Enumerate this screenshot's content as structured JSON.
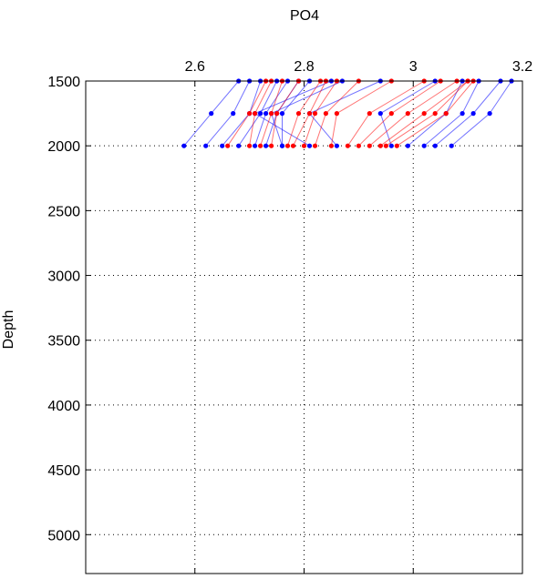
{
  "chart_data": {
    "type": "line",
    "title": "PO4",
    "xlabel": "",
    "ylabel": "Depth",
    "x_axis_position": "top",
    "y_axis_reversed": true,
    "xlim": [
      2.4,
      3.2
    ],
    "ylim": [
      1500,
      5300
    ],
    "xticks": [
      2.6,
      2.8,
      3,
      3.2
    ],
    "xtick_labels": [
      "2.6",
      "2.8",
      "3",
      "3.2"
    ],
    "yticks": [
      1500,
      2000,
      2500,
      3000,
      3500,
      4000,
      4500,
      5000
    ],
    "ytick_labels": [
      "1500",
      "2000",
      "2500",
      "3000",
      "3500",
      "4000",
      "4500",
      "5000"
    ],
    "grid": true,
    "series": [
      {
        "color": "#0000ff",
        "profiles": [
          [
            [
              2.68,
              1500
            ],
            [
              2.63,
              1750
            ],
            [
              2.58,
              2000
            ]
          ],
          [
            [
              2.7,
              1500
            ],
            [
              2.67,
              1750
            ],
            [
              2.62,
              2000
            ]
          ],
          [
            [
              2.72,
              1500
            ],
            [
              2.7,
              1750
            ],
            [
              2.65,
              2000
            ]
          ],
          [
            [
              2.75,
              1500
            ],
            [
              2.72,
              1750
            ],
            [
              2.68,
              2000
            ]
          ],
          [
            [
              2.77,
              1500
            ],
            [
              2.73,
              1750
            ],
            [
              2.71,
              2000
            ]
          ],
          [
            [
              2.79,
              1500
            ],
            [
              2.75,
              1750
            ],
            [
              2.73,
              2000
            ]
          ],
          [
            [
              2.81,
              1500
            ],
            [
              2.76,
              1750
            ],
            [
              2.76,
              2000
            ]
          ],
          [
            [
              2.85,
              1500
            ],
            [
              2.71,
              1750
            ],
            [
              2.81,
              2000
            ]
          ],
          [
            [
              2.87,
              1500
            ],
            [
              2.74,
              1750
            ],
            [
              2.76,
              2000
            ]
          ],
          [
            [
              2.94,
              1500
            ],
            [
              2.81,
              1750
            ],
            [
              2.86,
              2000
            ]
          ],
          [
            [
              3.04,
              1500
            ],
            [
              2.94,
              1750
            ],
            [
              2.96,
              2000
            ]
          ],
          [
            [
              3.09,
              1500
            ],
            [
              3.06,
              1750
            ],
            [
              2.99,
              2000
            ]
          ],
          [
            [
              3.12,
              1500
            ],
            [
              3.09,
              1750
            ],
            [
              3.02,
              2000
            ]
          ],
          [
            [
              3.16,
              1500
            ],
            [
              3.11,
              1750
            ],
            [
              3.04,
              2000
            ]
          ],
          [
            [
              3.18,
              1500
            ],
            [
              3.14,
              1750
            ],
            [
              3.07,
              2000
            ]
          ]
        ]
      },
      {
        "color": "#ff0000",
        "profiles": [
          [
            [
              2.73,
              1500
            ],
            [
              2.7,
              1750
            ],
            [
              2.66,
              2000
            ]
          ],
          [
            [
              2.74,
              1500
            ],
            [
              2.71,
              1750
            ],
            [
              2.7,
              2000
            ]
          ],
          [
            [
              2.76,
              1500
            ],
            [
              2.74,
              1750
            ],
            [
              2.72,
              2000
            ]
          ],
          [
            [
              2.79,
              1500
            ],
            [
              2.75,
              1750
            ],
            [
              2.74,
              2000
            ]
          ],
          [
            [
              2.83,
              1500
            ],
            [
              2.79,
              1750
            ],
            [
              2.77,
              2000
            ]
          ],
          [
            [
              2.84,
              1500
            ],
            [
              2.81,
              1750
            ],
            [
              2.78,
              2000
            ]
          ],
          [
            [
              2.86,
              1500
            ],
            [
              2.82,
              1750
            ],
            [
              2.8,
              2000
            ]
          ],
          [
            [
              2.9,
              1500
            ],
            [
              2.84,
              1750
            ],
            [
              2.82,
              2000
            ]
          ],
          [
            [
              2.96,
              1500
            ],
            [
              2.86,
              1750
            ],
            [
              2.85,
              2000
            ]
          ],
          [
            [
              3.02,
              1500
            ],
            [
              2.92,
              1750
            ],
            [
              2.88,
              2000
            ]
          ],
          [
            [
              3.05,
              1500
            ],
            [
              2.96,
              1750
            ],
            [
              2.9,
              2000
            ]
          ],
          [
            [
              3.08,
              1500
            ],
            [
              2.99,
              1750
            ],
            [
              2.92,
              2000
            ]
          ],
          [
            [
              3.1,
              1500
            ],
            [
              3.02,
              1750
            ],
            [
              2.94,
              2000
            ]
          ],
          [
            [
              3.1,
              1500
            ],
            [
              3.04,
              1750
            ],
            [
              2.95,
              2000
            ]
          ],
          [
            [
              3.11,
              1500
            ],
            [
              3.06,
              1750
            ],
            [
              2.97,
              2000
            ]
          ]
        ]
      }
    ]
  }
}
